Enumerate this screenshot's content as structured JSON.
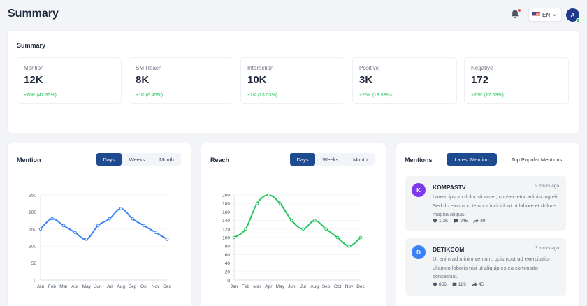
{
  "header": {
    "title": "Summary",
    "language": "EN",
    "avatar_initial": "A"
  },
  "summary": {
    "title": "Summary",
    "stats": [
      {
        "label": "Mention",
        "value": "12K",
        "delta": "+20K (47.35%)"
      },
      {
        "label": "SM Reach",
        "value": "8K",
        "delta": "+1K (6.45%)"
      },
      {
        "label": "Interaction",
        "value": "10K",
        "delta": "+2K (13.53%)"
      },
      {
        "label": "Positive",
        "value": "3K",
        "delta": "+25K (13.53%)"
      },
      {
        "label": "Negative",
        "value": "172",
        "delta": "+25K (12.53%)"
      }
    ]
  },
  "toggle_labels": {
    "days": "Days",
    "weeks": "Weeks",
    "month": "Month"
  },
  "mention_card": {
    "title": "Mention"
  },
  "reach_card": {
    "title": "Reach"
  },
  "chart_data": [
    {
      "type": "line",
      "title": "Mention",
      "categories": [
        "Jan",
        "Feb",
        "Mar",
        "Apr",
        "May",
        "Jun",
        "Jul",
        "Aug",
        "Sep",
        "Oct",
        "Nov",
        "Dec"
      ],
      "values": [
        150,
        180,
        160,
        140,
        120,
        160,
        180,
        210,
        180,
        160,
        140,
        120
      ],
      "ylim": [
        0,
        250
      ],
      "yticks": [
        0,
        50,
        100,
        150,
        200,
        250
      ],
      "color": "#3b82f6",
      "grid": true
    },
    {
      "type": "line",
      "title": "Reach",
      "categories": [
        "Jan",
        "Feb",
        "Mar",
        "Apr",
        "May",
        "Jun",
        "Jul",
        "Aug",
        "Sep",
        "Oct",
        "Nov",
        "Dec"
      ],
      "values": [
        100,
        120,
        180,
        200,
        180,
        140,
        120,
        140,
        120,
        100,
        80,
        100
      ],
      "ylim": [
        0,
        200
      ],
      "yticks": [
        0,
        20,
        40,
        60,
        80,
        100,
        120,
        140,
        160,
        180,
        200
      ],
      "color": "#22c55e",
      "grid": true
    }
  ],
  "mentions": {
    "title": "Mentions",
    "tab_latest": "Latest Mention",
    "tab_popular": "Top Popular Mentions",
    "items": [
      {
        "initial": "K",
        "name": "KOMPASTV",
        "time": "2 hours ago",
        "text": "Lorem ipsum dolor sit amet, consectetur adipiscing elit. Sed do eiusmod tempor incididunt ut labore et dolore magna aliqua.",
        "likes": "1.2K",
        "comments": "245",
        "shares": "89",
        "color": "#7c3aed"
      },
      {
        "initial": "D",
        "name": "DETIKCOM",
        "time": "3 hours ago",
        "text": "Ut enim ad minim veniam, quis nostrud exercitation ullamco laboris nisi ut aliquip ex ea commodo consequat.",
        "likes": "856",
        "comments": "189",
        "shares": "45",
        "color": "#3b82f6"
      }
    ]
  }
}
